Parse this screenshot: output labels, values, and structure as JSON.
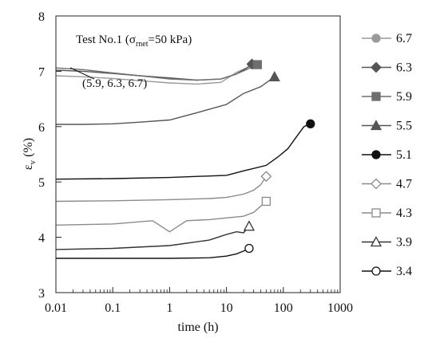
{
  "chart_data": {
    "type": "line",
    "title": "Test No.1 (σrnet=50 kPa)",
    "title_parts": {
      "prefix": "Test No.1 (σ",
      "sub": "rnet",
      "suffix": "=50 kPa)"
    },
    "xlabel": "time (h)",
    "ylabel": {
      "base": "ε",
      "sub": "v",
      "rest": " (%)"
    },
    "x_scale": "log",
    "xlim": [
      0.01,
      1000
    ],
    "ylim": [
      3,
      8
    ],
    "x_ticks": [
      0.01,
      0.1,
      1,
      10,
      100,
      1000
    ],
    "x_tick_labels": [
      "0.01",
      "0.1",
      "1",
      "10",
      "100",
      "1000"
    ],
    "y_ticks": [
      3,
      4,
      5,
      6,
      7,
      8
    ],
    "y_tick_labels": [
      "3",
      "4",
      "5",
      "6",
      "7",
      "8"
    ],
    "grid": false,
    "legend_position": "right",
    "annotation": "(5.9, 6.3, 6.7)",
    "series": [
      {
        "name": "6.7",
        "color": "#9a9a9a",
        "marker": "circle",
        "filled": true,
        "x": [
          0.01,
          0.03,
          0.1,
          0.3,
          1,
          3,
          8,
          15,
          25,
          30
        ],
        "y": [
          6.92,
          6.9,
          6.87,
          6.83,
          6.79,
          6.77,
          6.8,
          6.98,
          7.08,
          7.12
        ]
      },
      {
        "name": "6.3",
        "color": "#555555",
        "marker": "diamond",
        "filled": true,
        "x": [
          0.01,
          0.03,
          0.1,
          0.3,
          1,
          3,
          8,
          15,
          22,
          28
        ],
        "y": [
          7.02,
          7.0,
          6.96,
          6.92,
          6.88,
          6.84,
          6.86,
          6.95,
          7.05,
          7.13
        ]
      },
      {
        "name": "5.9",
        "color": "#6e6e6e",
        "marker": "square",
        "filled": true,
        "x": [
          0.01,
          0.03,
          0.1,
          0.3,
          1,
          3,
          8,
          15,
          25,
          35
        ],
        "y": [
          7.06,
          7.03,
          6.97,
          6.92,
          6.86,
          6.84,
          6.86,
          6.95,
          7.05,
          7.12
        ]
      },
      {
        "name": "5.5",
        "color": "#555555",
        "marker": "triangle",
        "filled": true,
        "x": [
          0.01,
          0.03,
          0.1,
          0.3,
          1,
          3,
          10,
          20,
          40,
          70
        ],
        "y": [
          6.04,
          6.04,
          6.05,
          6.08,
          6.12,
          6.25,
          6.4,
          6.6,
          6.72,
          6.9
        ]
      },
      {
        "name": "5.1",
        "color": "#111111",
        "marker": "circle",
        "filled": true,
        "x": [
          0.01,
          0.1,
          1,
          10,
          20,
          50,
          80,
          120,
          180,
          230,
          300
        ],
        "y": [
          5.05,
          5.06,
          5.08,
          5.12,
          5.2,
          5.3,
          5.45,
          5.6,
          5.85,
          6.0,
          6.05
        ]
      },
      {
        "name": "4.7",
        "color": "#8a8a8a",
        "marker": "diamond",
        "filled": false,
        "x": [
          0.01,
          0.1,
          1,
          5,
          10,
          20,
          30,
          40,
          50
        ],
        "y": [
          4.65,
          4.66,
          4.68,
          4.7,
          4.72,
          4.78,
          4.85,
          4.95,
          5.1
        ]
      },
      {
        "name": "4.3",
        "color": "#8a8a8a",
        "marker": "square",
        "filled": false,
        "x": [
          0.01,
          0.1,
          0.5,
          1,
          2,
          5,
          10,
          20,
          30,
          50
        ],
        "y": [
          4.22,
          4.24,
          4.3,
          4.1,
          4.3,
          4.32,
          4.35,
          4.38,
          4.45,
          4.65
        ]
      },
      {
        "name": "3.9",
        "color": "#333333",
        "marker": "triangle",
        "filled": false,
        "x": [
          0.01,
          0.1,
          1,
          5,
          10,
          15,
          20,
          25
        ],
        "y": [
          3.78,
          3.8,
          3.85,
          3.95,
          4.05,
          4.1,
          4.08,
          4.2
        ]
      },
      {
        "name": "3.4",
        "color": "#111111",
        "marker": "circle",
        "filled": false,
        "x": [
          0.01,
          0.1,
          1,
          5,
          10,
          15,
          20,
          25
        ],
        "y": [
          3.62,
          3.62,
          3.62,
          3.63,
          3.66,
          3.7,
          3.75,
          3.8
        ]
      }
    ]
  }
}
